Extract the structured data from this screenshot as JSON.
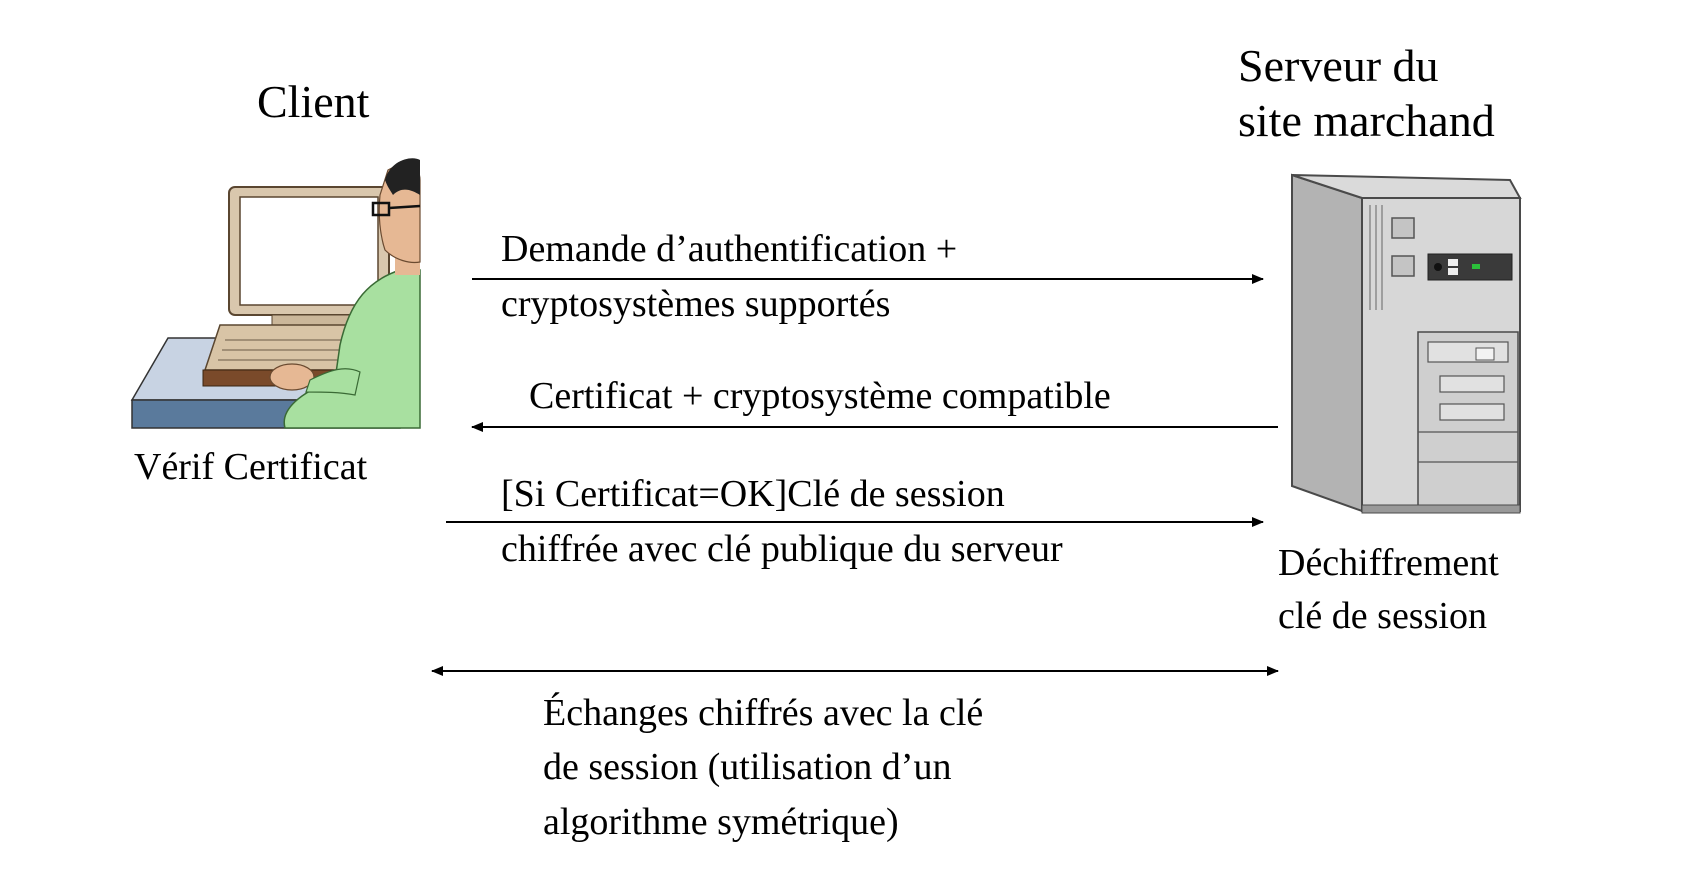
{
  "client": {
    "title": "Client",
    "note": "Vérif Certificat"
  },
  "server": {
    "title_lines": [
      "Serveur du",
      "site marchand"
    ],
    "note_lines": [
      "Déchiffrement",
      "clé de session"
    ]
  },
  "messages": [
    {
      "direction": "client-to-server",
      "lines": [
        "Demande d’authentification +",
        "cryptosystèmes supportés"
      ]
    },
    {
      "direction": "server-to-client",
      "lines": [
        "Certificat + cryptosystème compatible"
      ]
    },
    {
      "direction": "client-to-server",
      "lines": [
        "[Si Certificat=OK]Clé de session",
        "chiffrée avec clé publique du serveur"
      ]
    },
    {
      "direction": "both",
      "lines": [
        "Échanges chiffrés avec la clé",
        "de session (utilisation d’un",
        "algorithme symétrique)"
      ]
    }
  ],
  "icons": {
    "client": "user-at-computer-icon",
    "server": "server-tower-icon"
  }
}
